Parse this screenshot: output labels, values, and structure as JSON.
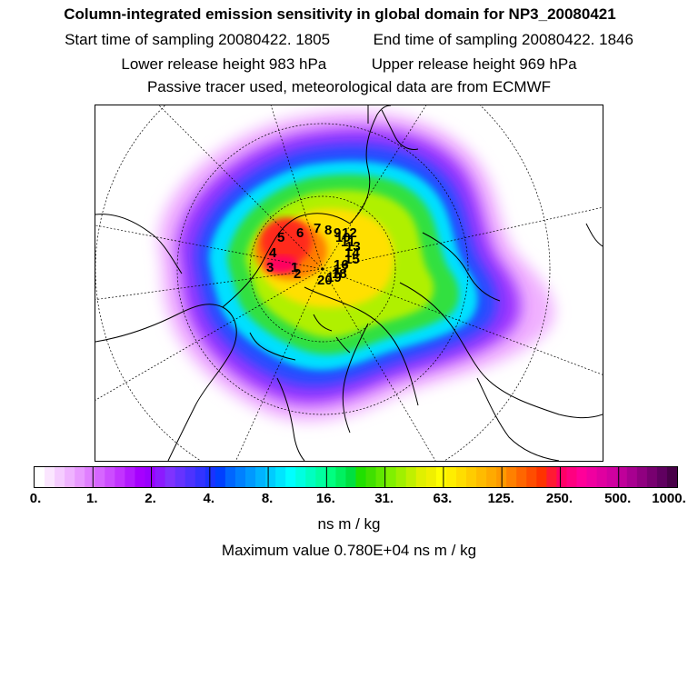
{
  "header": {
    "title": "Column-integrated emission sensitivity in global domain for NP3_20080421",
    "start_time": "Start time of sampling 20080422.  1805",
    "end_time": "End time of sampling 20080422.  1846",
    "lower_release": "Lower release height  983 hPa",
    "upper_release": "Upper release height  969 hPa",
    "tracer_info": "Passive tracer used, meteorological data are from ECMWF"
  },
  "map": {
    "projection": "polar-stereographic-north",
    "trajectory_labels": [
      "1",
      "2",
      "3",
      "4",
      "5",
      "6",
      "7",
      "8",
      "9",
      "10",
      "11",
      "12",
      "13",
      "14",
      "15",
      "16",
      "17",
      "18",
      "19",
      "20"
    ]
  },
  "colorbar": {
    "tick_labels": [
      "0.",
      "1.",
      "2.",
      "4.",
      "8.",
      "16.",
      "31.",
      "63.",
      "125.",
      "250.",
      "500.",
      "1000."
    ],
    "colors": [
      "#ffffff",
      "#fbe6ff",
      "#f5ccff",
      "#efb3ff",
      "#e899ff",
      "#e07fff",
      "#d666ff",
      "#cc4dff",
      "#c233ff",
      "#b31aff",
      "#a600ff",
      "#9900ff",
      "#8c1aff",
      "#7f33ff",
      "#6633ff",
      "#4d33ff",
      "#3333ff",
      "#1a33ff",
      "#0040ff",
      "#0066ff",
      "#0080ff",
      "#0099ff",
      "#00b3ff",
      "#00ccff",
      "#00e5ff",
      "#00ffff",
      "#00ffe0",
      "#00ffc0",
      "#00ffa0",
      "#00ff80",
      "#00f060",
      "#00e040",
      "#20e000",
      "#40e000",
      "#60e800",
      "#80f000",
      "#a0f000",
      "#c0f000",
      "#e0f000",
      "#f0f000",
      "#ffff00",
      "#ffee00",
      "#ffdd00",
      "#ffcc00",
      "#ffbb00",
      "#ffaa00",
      "#ff9900",
      "#ff8000",
      "#ff6600",
      "#ff4d00",
      "#ff3300",
      "#ff1a33",
      "#ff0066",
      "#ff0080",
      "#ff0099",
      "#f000a0",
      "#e000a0",
      "#d000a0",
      "#c0009a",
      "#a80090",
      "#900080",
      "#780070",
      "#600060",
      "#480048"
    ]
  },
  "units": "ns m / kg",
  "max_value": "Maximum value  0.780E+04 ns m / kg"
}
